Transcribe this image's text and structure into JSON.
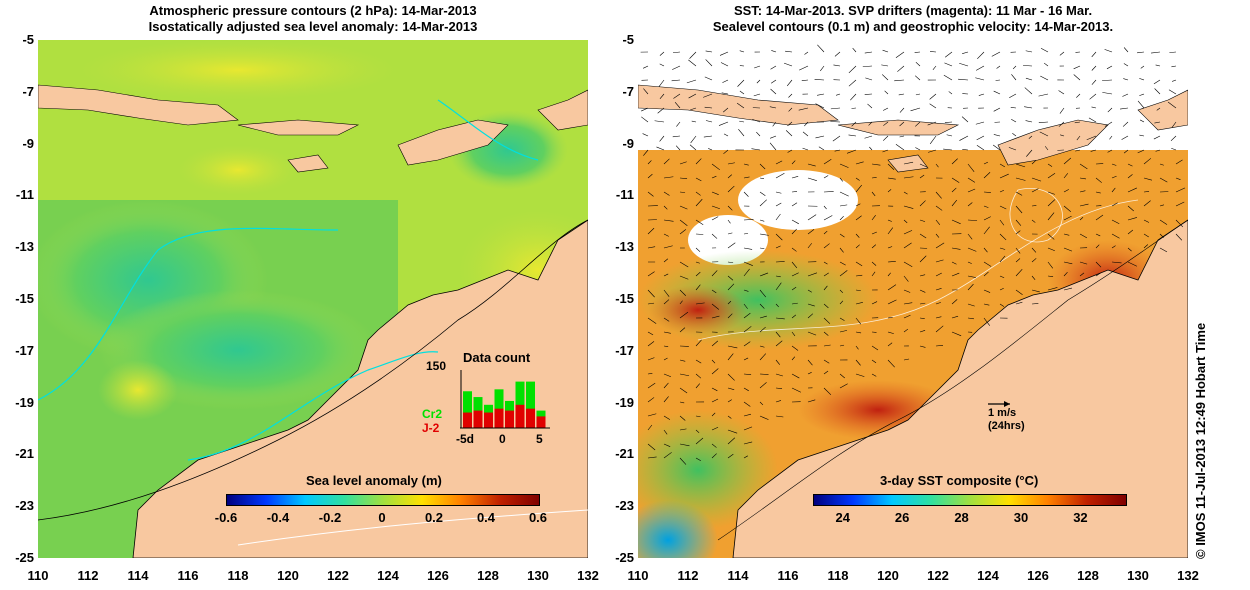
{
  "left_panel": {
    "title_line1": "Atmospheric pressure contours (2 hPa): 14-Mar-2013",
    "title_line2": "Isostatically adjusted sea level anomaly: 14-Mar-2013",
    "colorbar": {
      "title": "Sea level anomaly (m)",
      "min": -0.6,
      "max": 0.6,
      "ticks": [
        "-0.6",
        "-0.4",
        "-0.2",
        "0",
        "0.2",
        "0.4",
        "0.6"
      ],
      "colors": [
        "#00007f",
        "#0038ff",
        "#00c8ff",
        "#30e0a0",
        "#a0e040",
        "#ffe000",
        "#ff8000",
        "#c02000",
        "#7f0000"
      ]
    },
    "inset": {
      "title": "Data count",
      "ymax_label": "150",
      "x_labels": [
        "-5d",
        "0",
        "5"
      ],
      "series": [
        {
          "name": "Cr2",
          "color": "#00e000",
          "values": [
            95,
            80,
            60,
            100,
            70,
            120,
            120,
            45
          ]
        },
        {
          "name": "J-2",
          "color": "#e00000",
          "values": [
            40,
            45,
            40,
            50,
            45,
            60,
            50,
            30
          ]
        }
      ]
    }
  },
  "right_panel": {
    "title_line1": "SST: 14-Mar-2013. SVP drifters (magenta): 11 Mar - 16 Mar.",
    "title_line2": "Sealevel contours (0.1 m) and geostrophic velocity: 14-Mar-2013.",
    "colorbar": {
      "title": "3-day SST composite (°C)",
      "min": 23,
      "max": 33.5,
      "ticks": [
        "24",
        "26",
        "28",
        "30",
        "32"
      ],
      "tick_values": [
        24,
        26,
        28,
        30,
        32
      ],
      "colors": [
        "#00007f",
        "#0038ff",
        "#00c8ff",
        "#30e0a0",
        "#a0e040",
        "#ffe000",
        "#ff8000",
        "#c02000",
        "#7f0000"
      ]
    },
    "velocity_scale": {
      "line1": "1 m/s",
      "line2": "(24hrs)"
    }
  },
  "axes": {
    "y_ticks": [
      "-5",
      "-7",
      "-9",
      "-11",
      "-13",
      "-15",
      "-17",
      "-19",
      "-21",
      "-23",
      "-25"
    ],
    "x_ticks": [
      "110",
      "112",
      "114",
      "116",
      "118",
      "120",
      "122",
      "124",
      "126",
      "128",
      "130",
      "132"
    ],
    "lat_range": [
      -25,
      -5
    ],
    "lon_range": [
      110,
      132
    ]
  },
  "colors": {
    "land": "#f8c8a0",
    "sla_background": "#b8e840",
    "sst_background": "#f0a030"
  },
  "credit": "© IMOS 11-Jul-2013 12:49 Hobart Time"
}
